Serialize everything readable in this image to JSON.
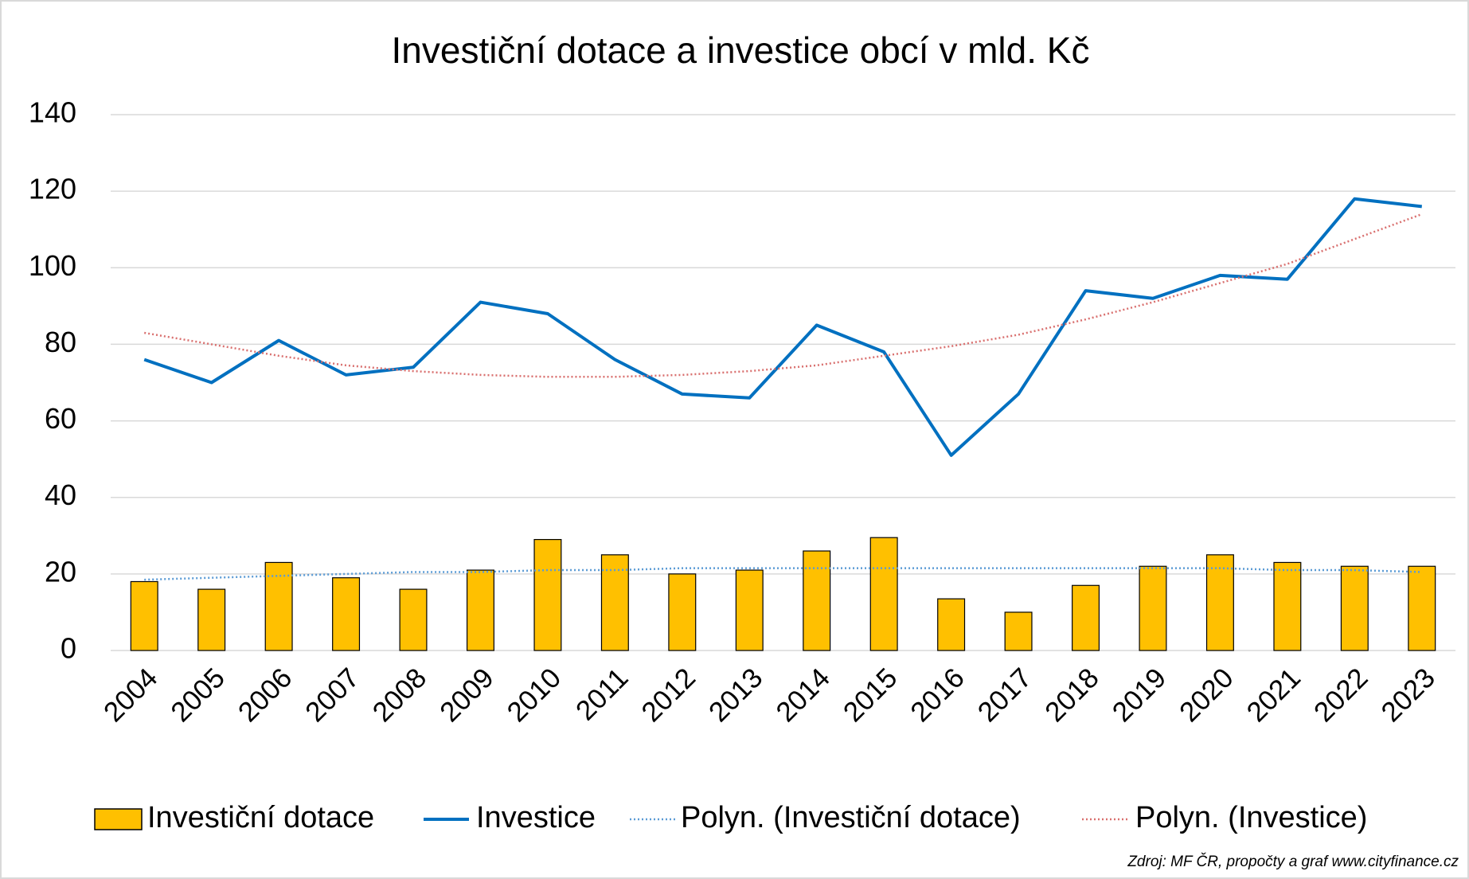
{
  "chart_data": {
    "type": "combo",
    "title": "Investiční dotace a investice obcí v mld. Kč",
    "categories": [
      "2004",
      "2005",
      "2006",
      "2007",
      "2008",
      "2009",
      "2010",
      "2011",
      "2012",
      "2013",
      "2014",
      "2015",
      "2016",
      "2017",
      "2018",
      "2019",
      "2020",
      "2021",
      "2022",
      "2023"
    ],
    "series": [
      {
        "name": "Investiční dotace",
        "type": "bar",
        "color": "#ffc000",
        "values": [
          18,
          16,
          23,
          19,
          16,
          21,
          29,
          25,
          20,
          21,
          26,
          29.5,
          13.5,
          10,
          17,
          22,
          25,
          23,
          22,
          22
        ]
      },
      {
        "name": "Investice",
        "type": "line",
        "style": "solid",
        "color": "#0070c0",
        "values": [
          76,
          70,
          81,
          72,
          74,
          91,
          88,
          76,
          67,
          66,
          85,
          78,
          51,
          67,
          94,
          92,
          98,
          97,
          118,
          116
        ]
      },
      {
        "name": "Polyn. (Investiční dotace)",
        "type": "line",
        "style": "dotted",
        "color": "#5b9bd5",
        "values": [
          18.5,
          19,
          19.5,
          20,
          20.5,
          20.5,
          21,
          21,
          21.5,
          21.5,
          21.5,
          21.5,
          21.5,
          21.5,
          21.5,
          21.5,
          21.5,
          21,
          21,
          20.5
        ]
      },
      {
        "name": "Polyn. (Investice)",
        "type": "line",
        "style": "dotted",
        "color": "#d9706f",
        "values": [
          83,
          80,
          77,
          74.5,
          73,
          72,
          71.5,
          71.5,
          72,
          73,
          74.5,
          77,
          79.5,
          82.5,
          86.5,
          91,
          96,
          101,
          107.5,
          114
        ]
      }
    ],
    "ylim": [
      0,
      140
    ],
    "yticks": [
      0,
      20,
      40,
      60,
      80,
      100,
      120,
      140
    ],
    "grid": true,
    "source": "Zdroj: MF ČR, propočty a graf www.cityfinance.cz"
  }
}
